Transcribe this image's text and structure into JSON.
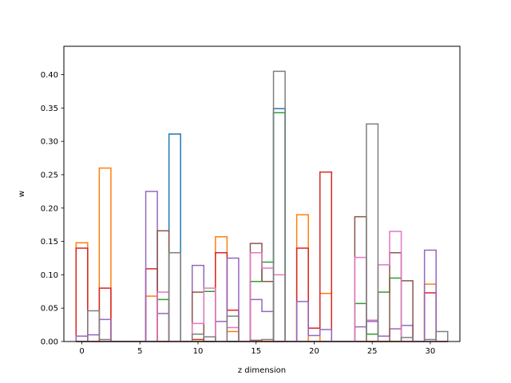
{
  "chart_data": {
    "type": "step",
    "xlabel": "z dimension",
    "ylabel": "w",
    "xlim": [
      -1.55,
      32.55
    ],
    "ylim": [
      0,
      0.4425
    ],
    "xticks": [
      0,
      5,
      10,
      15,
      20,
      25,
      30
    ],
    "xtick_labels": [
      "0",
      "5",
      "10",
      "15",
      "20",
      "25",
      "30"
    ],
    "yticks": [
      0.0,
      0.05,
      0.1,
      0.15,
      0.2,
      0.25,
      0.3,
      0.35,
      0.4
    ],
    "ytick_labels": [
      "0.00",
      "0.05",
      "0.10",
      "0.15",
      "0.20",
      "0.25",
      "0.30",
      "0.35",
      "0.40"
    ],
    "bin_width": 1,
    "bin_centers_start": 0,
    "series": [
      {
        "color": "#1f77b4",
        "values": [
          0,
          0,
          0,
          0,
          0,
          0,
          0,
          0,
          0.311,
          0,
          0,
          0,
          0,
          0,
          0,
          0,
          0,
          0.349,
          0,
          0,
          0,
          0,
          0,
          0,
          0,
          0,
          0,
          0,
          0,
          0,
          0,
          0
        ]
      },
      {
        "color": "#ff7f0e",
        "values": [
          0.148,
          0,
          0.26,
          0,
          0,
          0,
          0.068,
          0,
          0,
          0,
          0,
          0,
          0.157,
          0.015,
          0,
          0,
          0,
          0,
          0,
          0.19,
          0,
          0.072,
          0,
          0,
          0,
          0,
          0,
          0,
          0,
          0,
          0.086,
          0
        ]
      },
      {
        "color": "#2ca02c",
        "values": [
          0,
          0,
          0,
          0,
          0,
          0,
          0,
          0.063,
          0,
          0,
          0,
          0.075,
          0,
          0,
          0,
          0.09,
          0.119,
          0.343,
          0,
          0,
          0,
          0,
          0,
          0,
          0.057,
          0.011,
          0.074,
          0.095,
          0,
          0,
          0,
          0
        ]
      },
      {
        "color": "#d62728",
        "values": [
          0.14,
          0,
          0.08,
          0,
          0,
          0,
          0.109,
          0,
          0,
          0,
          0.003,
          0,
          0.133,
          0.047,
          0,
          0,
          0,
          0,
          0,
          0.14,
          0.02,
          0.254,
          0,
          0,
          0,
          0,
          0,
          0,
          0,
          0,
          0.073,
          0
        ]
      },
      {
        "color": "#9467bd",
        "values": [
          0.008,
          0.01,
          0.033,
          0,
          0,
          0,
          0.225,
          0.042,
          0,
          0,
          0.114,
          0,
          0.03,
          0.125,
          0,
          0.063,
          0.045,
          0,
          0,
          0.06,
          0.009,
          0.018,
          0,
          0,
          0.022,
          0.03,
          0.008,
          0.019,
          0.024,
          0,
          0.137,
          0
        ]
      },
      {
        "color": "#8c564b",
        "values": [
          0,
          0,
          0,
          0,
          0,
          0,
          0,
          0.166,
          0,
          0,
          0.074,
          0,
          0,
          0,
          0,
          0.147,
          0.09,
          0,
          0,
          0,
          0,
          0,
          0,
          0,
          0.187,
          0,
          0,
          0.133,
          0.091,
          0,
          0,
          0
        ]
      },
      {
        "color": "#e377c2",
        "values": [
          0,
          0,
          0,
          0,
          0,
          0,
          0,
          0.074,
          0,
          0,
          0.027,
          0.08,
          0,
          0.021,
          0,
          0.133,
          0.11,
          0.1,
          0,
          0,
          0,
          0,
          0,
          0,
          0.126,
          0.032,
          0.115,
          0.165,
          0,
          0,
          0,
          0
        ]
      },
      {
        "color": "#7f7f7f",
        "values": [
          0,
          0.046,
          0.003,
          0,
          0,
          0,
          0,
          0,
          0.133,
          0,
          0.011,
          0.007,
          0,
          0.038,
          0,
          0.002,
          0.003,
          0.405,
          0,
          0,
          0,
          0,
          0,
          0,
          0,
          0.326,
          0,
          0,
          0.006,
          0,
          0.003,
          0.015
        ]
      }
    ]
  }
}
